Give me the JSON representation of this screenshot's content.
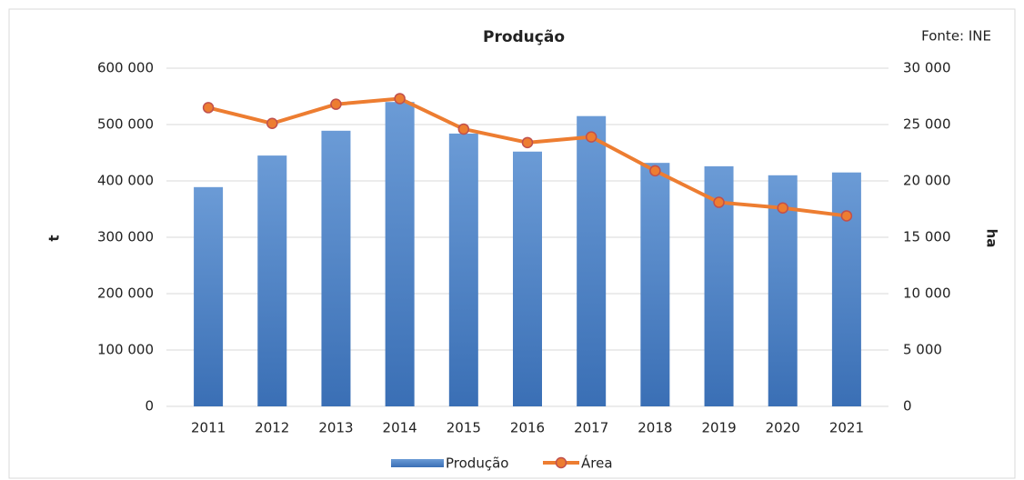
{
  "chart_data": {
    "type": "bar_line",
    "title": "Produção",
    "annotation": "Fonte: INE",
    "y_label": "t",
    "y2_label": "ha",
    "categories": [
      "2011",
      "2012",
      "2013",
      "2014",
      "2015",
      "2016",
      "2017",
      "2018",
      "2019",
      "2020",
      "2021"
    ],
    "series": [
      {
        "name": "Produção",
        "type": "bar",
        "color": "#4a7fc6",
        "values": [
          389000,
          445000,
          489000,
          540000,
          484000,
          452000,
          515000,
          432000,
          426000,
          410000,
          415000
        ]
      },
      {
        "name": "Área",
        "type": "line",
        "axis": "y2",
        "color": "#ed7d31",
        "values": [
          26500,
          25100,
          26800,
          27300,
          24600,
          23400,
          23900,
          20900,
          18100,
          17600,
          16900
        ]
      }
    ],
    "ylim": [
      0,
      600000
    ],
    "yticks": [
      0,
      {
        "value": 100000,
        "label": "100 000"
      },
      {
        "value": 200000,
        "label": "200 000"
      },
      {
        "value": 300000,
        "label": "300 000"
      },
      {
        "value": 400000,
        "label": "400 000"
      },
      {
        "value": 500000,
        "label": "500 000"
      },
      {
        "value": 600000,
        "label": "600 000"
      }
    ],
    "y2lim": [
      0,
      30000
    ],
    "y2ticks": [
      0,
      {
        "value": 5000,
        "label": "5 000"
      },
      {
        "value": 10000,
        "label": "10 000"
      },
      {
        "value": 15000,
        "label": "15 000"
      },
      {
        "value": 20000,
        "label": "20 000"
      },
      {
        "value": 25000,
        "label": "25 000"
      },
      {
        "value": 30000,
        "label": "30 000"
      }
    ],
    "grid": true,
    "legend": "bottom"
  }
}
